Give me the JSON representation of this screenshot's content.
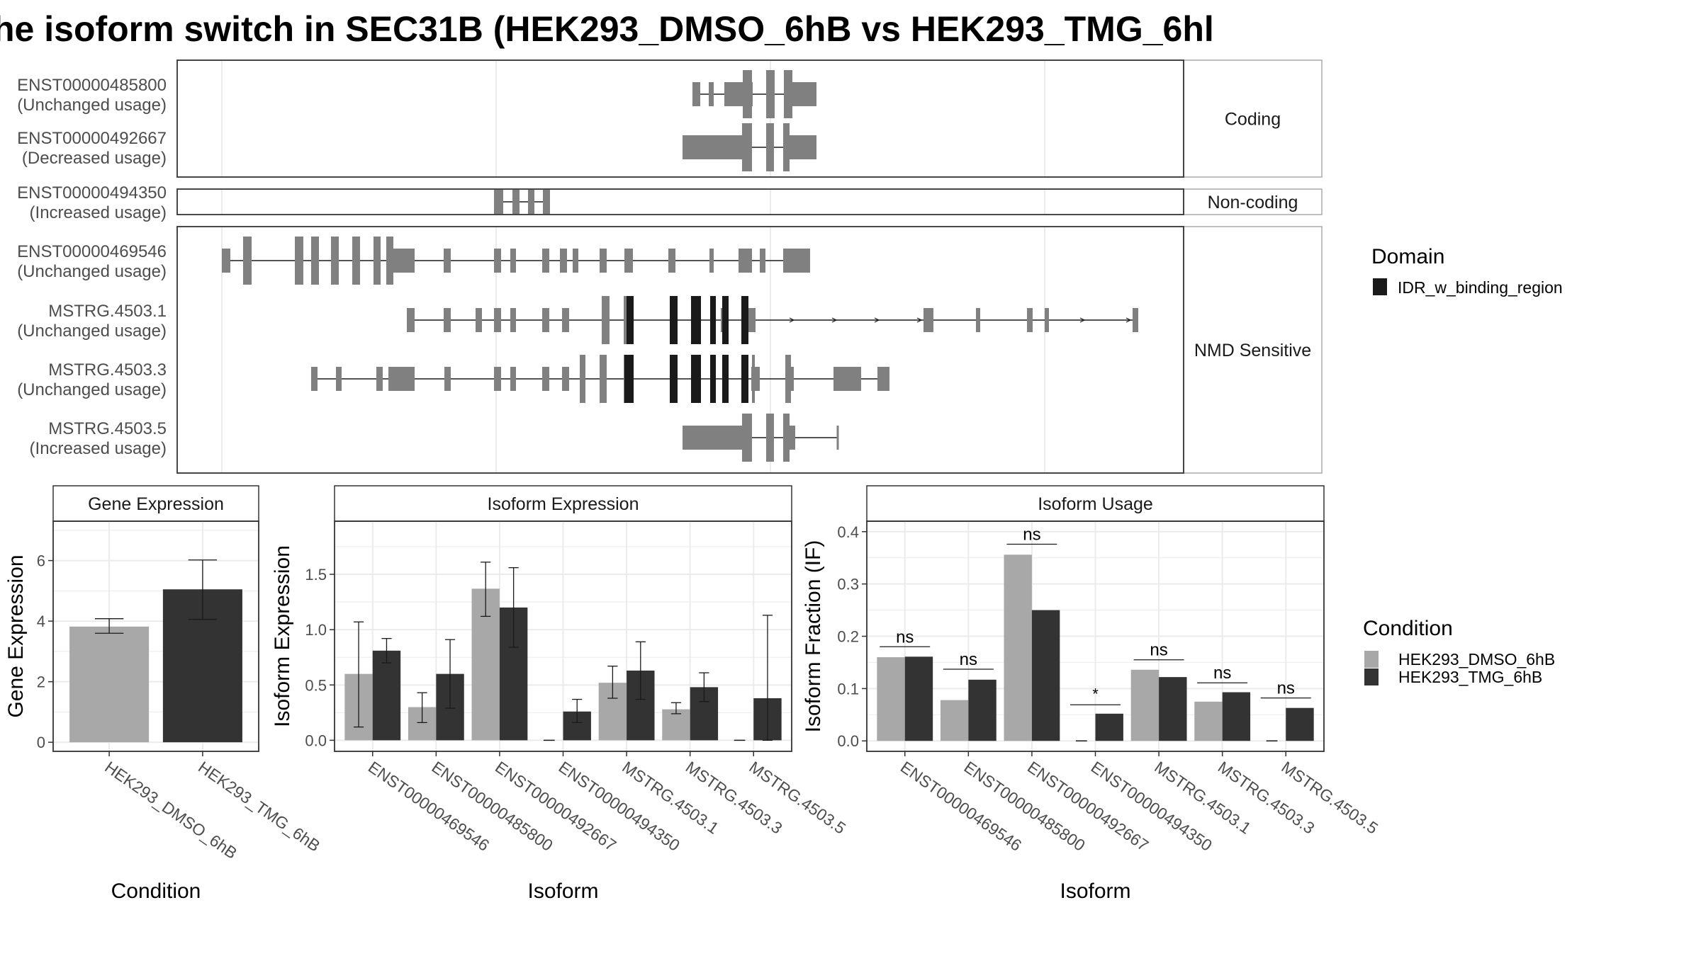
{
  "title": "he isoform switch in SEC31B (HEK293_DMSO_6hB vs HEK293_TMG_6hl",
  "colors": {
    "dmso": "#a8a8a8",
    "tmg": "#333333",
    "exon": "#808080",
    "domain": "#1a1a1a",
    "grid": "#ebebeb",
    "panel_border": "#333333",
    "strip_border": "#aaaaaa"
  },
  "transcripts": {
    "groups": [
      {
        "label": "Coding",
        "rows": [
          0,
          1
        ]
      },
      {
        "label": "Non-coding",
        "rows": [
          2
        ]
      },
      {
        "label": "NMD Sensitive",
        "rows": [
          3,
          4,
          5,
          6
        ]
      }
    ],
    "rows": [
      {
        "id": "ENST00000485800",
        "usage": "(Unchanged usage)"
      },
      {
        "id": "ENST00000492667",
        "usage": "(Decreased usage)"
      },
      {
        "id": "ENST00000494350",
        "usage": "(Increased usage)"
      },
      {
        "id": "ENST00000469546",
        "usage": "(Unchanged usage)"
      },
      {
        "id": "MSTRG.4503.1",
        "usage": "(Unchanged usage)"
      },
      {
        "id": "MSTRG.4503.3",
        "usage": "(Unchanged usage)"
      },
      {
        "id": "MSTRG.4503.5",
        "usage": "(Increased usage)"
      }
    ]
  },
  "legend_domain": {
    "title": "Domain",
    "items": [
      "IDR_w_binding_region"
    ]
  },
  "legend_condition": {
    "title": "Condition",
    "items": [
      "HEK293_DMSO_6hB",
      "HEK293_TMG_6hB"
    ]
  },
  "chart_data": [
    {
      "type": "bar",
      "title": "Gene Expression",
      "xlabel": "Condition",
      "ylabel": "Gene Expression",
      "ylim": [
        -0.3,
        7.3
      ],
      "yticks": [
        0,
        2,
        4,
        6
      ],
      "categories": [
        "HEK293_DMSO_6hB",
        "HEK293_TMG_6hB"
      ],
      "values": [
        3.82,
        5.05
      ],
      "errors": [
        [
          3.6,
          4.08
        ],
        [
          4.06,
          6.02
        ]
      ]
    },
    {
      "type": "bar",
      "title": "Isoform Expression",
      "xlabel": "Isoform",
      "ylabel": "Isoform Expression",
      "ylim": [
        -0.1,
        1.98
      ],
      "yticks": [
        0.0,
        0.5,
        1.0,
        1.5
      ],
      "categories": [
        "ENST00000469546",
        "ENST00000485800",
        "ENST00000492667",
        "ENST00000494350",
        "MSTRG.4503.1",
        "MSTRG.4503.3",
        "MSTRG.4503.5"
      ],
      "series": [
        {
          "name": "HEK293_DMSO_6hB",
          "values": [
            0.6,
            0.3,
            1.37,
            0.0,
            0.52,
            0.28,
            0.0
          ],
          "errors": [
            [
              0.12,
              1.07
            ],
            [
              0.16,
              0.43
            ],
            [
              1.12,
              1.61
            ],
            [
              null,
              null
            ],
            [
              0.38,
              0.67
            ],
            [
              0.24,
              0.34
            ],
            [
              null,
              null
            ]
          ]
        },
        {
          "name": "HEK293_TMG_6hB",
          "values": [
            0.81,
            0.6,
            1.2,
            0.26,
            0.63,
            0.48,
            0.38
          ],
          "errors": [
            [
              0.7,
              0.92
            ],
            [
              0.29,
              0.91
            ],
            [
              0.84,
              1.56
            ],
            [
              0.16,
              0.37
            ],
            [
              0.37,
              0.89
            ],
            [
              0.35,
              0.61
            ],
            [
              0.0,
              1.13
            ]
          ]
        }
      ]
    },
    {
      "type": "bar",
      "title": "Isoform Usage",
      "xlabel": "Isoform",
      "ylabel": "Isoform Fraction (IF)",
      "ylim": [
        -0.02,
        0.42
      ],
      "yticks": [
        0.0,
        0.1,
        0.2,
        0.3,
        0.4
      ],
      "categories": [
        "ENST00000469546",
        "ENST00000485800",
        "ENST00000492667",
        "ENST00000494350",
        "MSTRG.4503.1",
        "MSTRG.4503.3",
        "MSTRG.4503.5"
      ],
      "series": [
        {
          "name": "HEK293_DMSO_6hB",
          "values": [
            0.16,
            0.078,
            0.356,
            0.0,
            0.136,
            0.075,
            0.0
          ]
        },
        {
          "name": "HEK293_TMG_6hB",
          "values": [
            0.161,
            0.117,
            0.25,
            0.052,
            0.122,
            0.093,
            0.063
          ]
        }
      ],
      "significance": [
        "ns",
        "ns",
        "ns",
        "*",
        "ns",
        "ns",
        "ns"
      ],
      "significance_y": [
        0.18,
        0.137,
        0.376,
        0.069,
        0.155,
        0.111,
        0.082
      ]
    }
  ]
}
